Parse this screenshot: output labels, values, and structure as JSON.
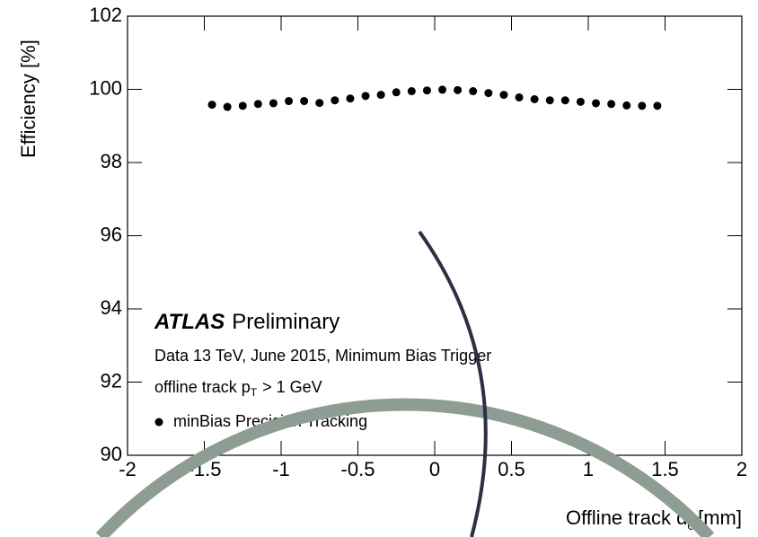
{
  "chart_data": {
    "type": "scatter",
    "ylabel": "Efficiency [%]",
    "xlabel": {
      "main": "Offline track d",
      "sub": "0",
      "unit": "[mm]"
    },
    "annotations": {
      "atlas": "ATLAS",
      "preliminary": "Preliminary",
      "line1": "Data 13 TeV, June 2015, Minimum Bias Trigger",
      "line2_prefix": "offline track p",
      "line2_sub": "T",
      "line2_suffix": "> 1 GeV"
    },
    "series": [
      {
        "name": "minBias Precision Tracking",
        "color": "#000000",
        "x": [
          -1.45,
          -1.35,
          -1.25,
          -1.15,
          -1.05,
          -0.95,
          -0.85,
          -0.75,
          -0.65,
          -0.55,
          -0.45,
          -0.35,
          -0.25,
          -0.15,
          -0.05,
          0.05,
          0.15,
          0.25,
          0.35,
          0.45,
          0.55,
          0.65,
          0.75,
          0.85,
          0.95,
          1.05,
          1.15,
          1.25,
          1.35,
          1.45
        ],
        "values": [
          99.58,
          99.52,
          99.55,
          99.6,
          99.62,
          99.68,
          99.68,
          99.63,
          99.7,
          99.75,
          99.82,
          99.85,
          99.92,
          99.95,
          99.97,
          99.99,
          99.98,
          99.95,
          99.9,
          99.85,
          99.78,
          99.73,
          99.7,
          99.7,
          99.66,
          99.62,
          99.6,
          99.56,
          99.55,
          99.55
        ]
      }
    ],
    "xlim": [
      -2,
      2
    ],
    "xticks": [
      -2,
      -1.5,
      -1,
      -0.5,
      0,
      0.5,
      1,
      1.5,
      2
    ],
    "ylim": [
      90,
      102
    ],
    "yticks": [
      90,
      92,
      94,
      96,
      98,
      100,
      102
    ]
  }
}
